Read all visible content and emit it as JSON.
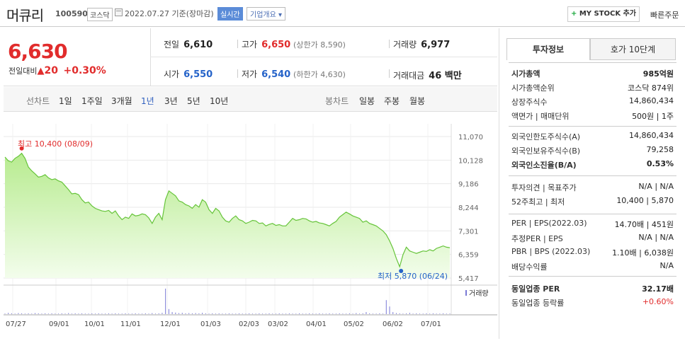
{
  "header": {
    "stock_name": "머큐리",
    "stock_code": "100590",
    "market": "코스닥",
    "date_text": "2022.07.27  기준(장마감)",
    "realtime_label": "실시간",
    "company_info_label": "기업개요 ▾",
    "mystock_label": "MY STOCK 추가",
    "quick_order_label": "빠른주문"
  },
  "summary": {
    "current_price": "6,630",
    "change_label": "전일대비",
    "change_arrow": "▲",
    "change_value": "20",
    "change_rate": "+0.30%",
    "prev_close_label": "전일",
    "prev_close": "6,610",
    "high_label": "고가",
    "high": "6,650",
    "upper_limit": "(상한가 8,590)",
    "volume_label": "거래량",
    "volume": "6,977",
    "open_label": "시가",
    "open": "6,550",
    "low_label": "저가",
    "low": "6,540",
    "lower_limit": "(하한가 4,630)",
    "amount_label": "거래대금",
    "amount": "46 백만"
  },
  "periods": {
    "line_label": "선차트",
    "line_items": [
      "1일",
      "1주일",
      "3개월",
      "1년",
      "3년",
      "5년",
      "10년"
    ],
    "active_index": 3,
    "candle_label": "봉차트",
    "candle_items": [
      "일봉",
      "주봉",
      "월봉"
    ]
  },
  "chart_data": {
    "type": "area",
    "y_ticks": [
      "11,070",
      "10,128",
      "9,186",
      "8,244",
      "7,301",
      "6,359",
      "5,417"
    ],
    "ylim": [
      5417,
      11070
    ],
    "x_ticks": [
      "07/27",
      "09/01",
      "10/01",
      "11/01",
      "12/01",
      "01/03",
      "02/03",
      "03/02",
      "04/01",
      "05/02",
      "06/02",
      "07/01"
    ],
    "max_label": "최고 10,400 (08/09)",
    "min_label": "최저 5,870 (06/24)",
    "volume_label": "거래량",
    "series": [
      {
        "values": [
          10250,
          10100,
          10050,
          10200,
          10280,
          10400,
          10200,
          9850,
          9700,
          9580,
          9450,
          9480,
          9550,
          9420,
          9350,
          9380,
          9300,
          9250,
          9100,
          8950,
          8780,
          8800,
          8750,
          8550,
          8420,
          8450,
          8300,
          8200,
          8150,
          8100,
          8080,
          8120,
          8000,
          8100,
          7900,
          7750,
          7850,
          7800,
          7980,
          7900,
          7920,
          7980,
          7950,
          7820,
          7600,
          7850,
          8000,
          7750,
          8550,
          8900,
          8800,
          8700,
          8500,
          8450,
          8350,
          8300,
          8200,
          8350,
          8250,
          8550,
          8450,
          8150,
          8000,
          8200,
          8100,
          7850,
          7700,
          7650,
          7800,
          7900,
          7750,
          7700,
          7600,
          7650,
          7720,
          7700,
          7600,
          7620,
          7500,
          7560,
          7600,
          7520,
          7550,
          7500,
          7500,
          7650,
          7800,
          7720,
          7750,
          7800,
          7780,
          7700,
          7650,
          7680,
          7620,
          7600,
          7550,
          7500,
          7600,
          7680,
          7850,
          7950,
          8050,
          7980,
          7900,
          7850,
          7800,
          7650,
          7700,
          7600,
          7550,
          7500,
          7400,
          7300,
          7150,
          6900,
          6600,
          6200,
          5870,
          6350,
          6650,
          6500,
          6450,
          6400,
          6450,
          6500,
          6480,
          6550,
          6500,
          6600,
          6650,
          6700,
          6650,
          6630
        ]
      }
    ],
    "volume": [
      0.02,
      0.05,
      0.03,
      0.02,
      0.04,
      0.03,
      0.02,
      0.03,
      0.02,
      0.04,
      0.03,
      0.02,
      0.03,
      0.02,
      0.03,
      0.02,
      0.02,
      0.03,
      0.02,
      0.04,
      0.02,
      0.03,
      0.02,
      0.03,
      0.02,
      0.02,
      0.03,
      0.02,
      0.03,
      0.02,
      0.02,
      0.03,
      0.02,
      0.03,
      0.02,
      0.02,
      0.03,
      0.02,
      0.02,
      0.03,
      0.02,
      0.02,
      0.03,
      0.02,
      0.04,
      0.02,
      0.03,
      0.05,
      1.0,
      0.2,
      0.08,
      0.06,
      0.04,
      0.05,
      0.03,
      0.04,
      0.03,
      0.04,
      0.03,
      0.05,
      0.03,
      0.02,
      0.03,
      0.02,
      0.03,
      0.02,
      0.02,
      0.03,
      0.02,
      0.02,
      0.03,
      0.02,
      0.02,
      0.03,
      0.02,
      0.02,
      0.03,
      0.02,
      0.02,
      0.03,
      0.02,
      0.02,
      0.03,
      0.02,
      0.02,
      0.03,
      0.02,
      0.02,
      0.03,
      0.02,
      0.02,
      0.03,
      0.02,
      0.02,
      0.03,
      0.02,
      0.02,
      0.03,
      0.02,
      0.02,
      0.03,
      0.02,
      0.02,
      0.03,
      0.02,
      0.04,
      0.02,
      0.03,
      0.08,
      0.03,
      0.02,
      0.02,
      0.03,
      0.02,
      0.55,
      0.3,
      0.08,
      0.04,
      0.03,
      0.02,
      0.03,
      0.05,
      0.02,
      0.03,
      0.02,
      0.02,
      0.03,
      0.02,
      0.03,
      0.02,
      0.02,
      0.03,
      0.02,
      0.02
    ]
  },
  "panel": {
    "tab_invest": "투자정보",
    "tab_hoga": "호가 10단계",
    "rows1": [
      {
        "k": "시가총액",
        "v": "985억원",
        "bold": true
      },
      {
        "k": "시가총액순위",
        "v": "코스닥 874위"
      },
      {
        "k": "상장주식수",
        "v": "14,860,434"
      },
      {
        "k": "액면가 | 매매단위",
        "v": "500원 | 1주"
      }
    ],
    "rows2": [
      {
        "k": "외국인한도주식수(A)",
        "v": "14,860,434"
      },
      {
        "k": "외국인보유주식수(B)",
        "v": "79,258"
      },
      {
        "k": "외국인소진율(B/A)",
        "v": "0.53%",
        "bold": true
      }
    ],
    "rows3": [
      {
        "k": "투자의견 | 목표주가",
        "v": "N/A | N/A"
      },
      {
        "k": "52주최고 | 최저",
        "v": "10,400 | 5,870"
      }
    ],
    "rows4": [
      {
        "k": "PER | EPS(2022.03)",
        "v": "14.70배 | 451원"
      },
      {
        "k": "추정PER | EPS",
        "v": "N/A | N/A"
      },
      {
        "k": "PBR | BPS (2022.03)",
        "v": "1.10배 | 6,038원"
      },
      {
        "k": "배당수익률",
        "v": "N/A"
      }
    ],
    "rows5": [
      {
        "k": "동일업종 PER",
        "v": "32.17배",
        "bold": true
      },
      {
        "k": "동일업종 등락률",
        "v": "+0.60%",
        "red": true
      }
    ]
  }
}
